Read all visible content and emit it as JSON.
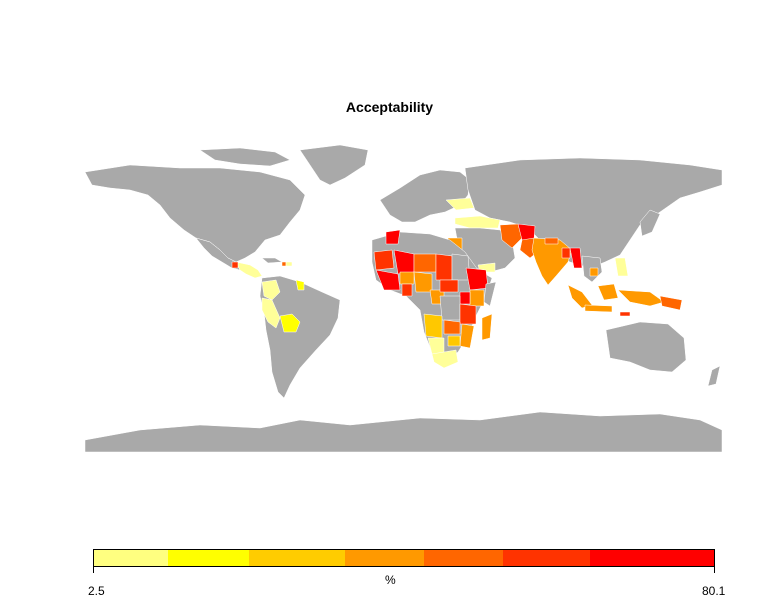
{
  "title": "Acceptability",
  "legend": {
    "unit": "%",
    "min_label": "2.5",
    "max_label": "80.1",
    "colors": [
      "#ffff80",
      "#ffff00",
      "#ffcc00",
      "#ff9900",
      "#ff6600",
      "#ff3300",
      "#ff0000"
    ],
    "breaks_fraction": [
      0,
      0.12,
      0.25,
      0.405,
      0.533,
      0.66,
      0.8,
      1
    ]
  },
  "colors": {
    "land": "#a9a9a9",
    "no_data": "#a9a9a9",
    "low": "#ffff99",
    "yellow": "#ffff00",
    "light_orange": "#ffc800",
    "orange": "#ff9900",
    "dark_orange": "#ff6600",
    "red_orange": "#ff3300",
    "red": "#ff0000"
  }
}
